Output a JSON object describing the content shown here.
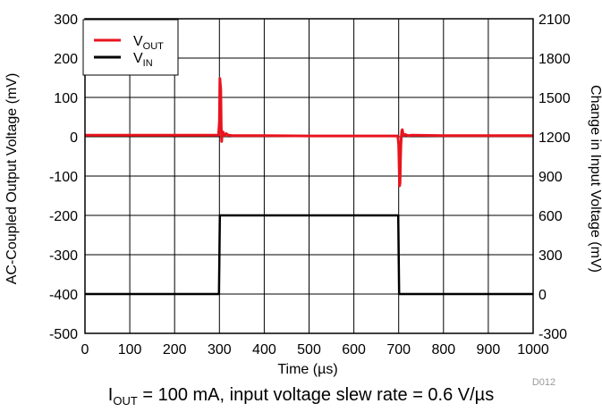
{
  "chart_data": {
    "type": "line",
    "xlabel": "Time (µs)",
    "ylabel_left": "AC-Coupled Output Voltage (mV)",
    "ylabel_right": "Change in Input Voltage (mV)",
    "xlim": [
      0,
      1000
    ],
    "ylim_left": [
      -500,
      300
    ],
    "ylim_right": [
      -300,
      2100
    ],
    "x_ticks": [
      0,
      100,
      200,
      300,
      400,
      500,
      600,
      700,
      800,
      900,
      1000
    ],
    "y_ticks_left": [
      300,
      200,
      100,
      0,
      -100,
      -200,
      -300,
      -400,
      -500
    ],
    "y_ticks_right": [
      2100,
      1800,
      1500,
      1200,
      900,
      600,
      300,
      0,
      -300
    ],
    "grid": true,
    "legend_position": "top-left",
    "series": [
      {
        "name": "VOUT",
        "label_main": "V",
        "label_sub": "OUT",
        "color": "#e8141e",
        "axis": "left",
        "x": [
          0,
          298,
          300,
          301,
          303,
          304,
          305,
          306,
          308,
          310,
          312,
          315,
          320,
          330,
          400,
          500,
          600,
          698,
          700,
          702,
          703,
          704,
          705,
          706,
          707,
          708,
          709,
          710,
          712,
          715,
          720,
          730,
          800,
          900,
          1000
        ],
        "y": [
          4,
          4,
          40,
          148,
          120,
          30,
          -12,
          5,
          12,
          6,
          3,
          8,
          4,
          3,
          3,
          2,
          2,
          2,
          -20,
          -125,
          -118,
          -60,
          -20,
          2,
          15,
          18,
          12,
          6,
          3,
          6,
          3,
          4,
          3,
          3,
          3
        ]
      },
      {
        "name": "VIN",
        "label_main": "V",
        "label_sub": "IN",
        "color": "#000000",
        "axis": "right",
        "x": [
          0,
          299,
          300,
          301,
          600,
          699,
          700,
          701,
          1000
        ],
        "y": [
          0,
          0,
          300,
          600,
          600,
          600,
          300,
          0,
          0
        ]
      }
    ]
  },
  "figure_id": "D012",
  "caption": {
    "i": "I",
    "sub": "OUT",
    "rest": " = 100 mA, input voltage slew rate = 0.6 V/µs"
  }
}
